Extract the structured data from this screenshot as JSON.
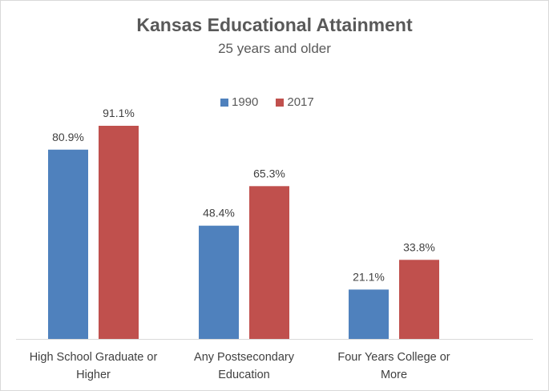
{
  "chart_data": {
    "type": "bar",
    "title": "Kansas Educational Attainment",
    "subtitle": "25 years and older",
    "categories": [
      [
        "High School Graduate or",
        "Higher"
      ],
      [
        "Any Postsecondary",
        "Education"
      ],
      [
        "Four Years College or",
        "More"
      ]
    ],
    "series": [
      {
        "name": "1990",
        "color": "#4f81bd",
        "values": [
          80.9,
          48.4,
          21.1
        ],
        "labels": [
          "80.9%",
          "48.4%",
          "21.1%"
        ]
      },
      {
        "name": "2017",
        "color": "#c0504d",
        "values": [
          91.1,
          65.3,
          33.8
        ],
        "labels": [
          "91.1%",
          "65.3%",
          "33.8%"
        ]
      }
    ],
    "ylim": [
      0,
      100
    ],
    "legend_position": "top-center",
    "grid": false
  }
}
